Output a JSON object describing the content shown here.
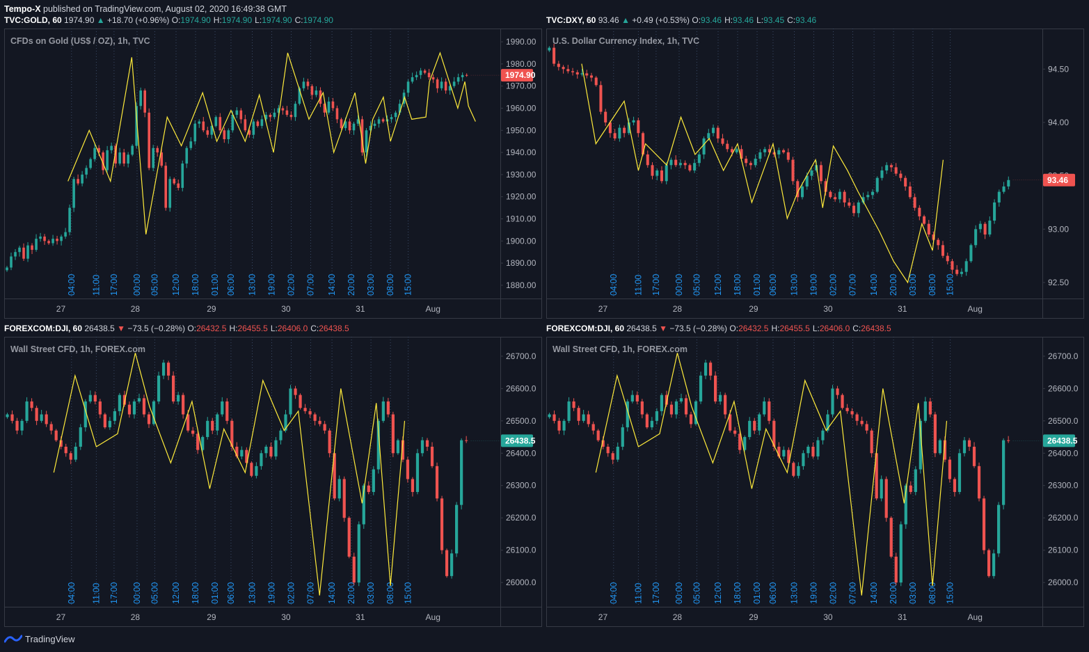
{
  "header": {
    "author": "Tempo-X",
    "text": "published on TradingView.com, August 02, 2020 16:49:38 GMT"
  },
  "footer": {
    "brand": "TradingView",
    "logo_icon": "tradingview-logo-icon"
  },
  "colors": {
    "background": "#131722",
    "border": "#363a45",
    "up": "#26a69a",
    "down": "#ef5350",
    "zigzag": "#ffeb3b",
    "time_label": "#2196f3",
    "grid_vline": "#3a4a66",
    "axis_text": "#b2b5be"
  },
  "panes": [
    {
      "header": {
        "symbol": "TVC:GOLD, 60",
        "last": "1974.90",
        "change": "+18.70 (+0.96%)",
        "direction": "up",
        "o": "1974.90",
        "h": "1974.90",
        "l": "1974.90",
        "c": "1974.90"
      },
      "title": "CFDs on Gold (US$ / OZ), 1h, TVC",
      "price_axis": {
        "ticks": [
          "1990.00",
          "1980.00",
          "1970.00",
          "1960.00",
          "1950.00",
          "1940.00",
          "1930.00",
          "1920.00",
          "1910.00",
          "1900.00",
          "1890.00",
          "1880.00"
        ],
        "last_label": "1974.90",
        "last_color": "#ef5350"
      },
      "time_labels": [
        "04:00",
        "11:00",
        "17:00",
        "00:00",
        "05:00",
        "12:00",
        "18:00",
        "01:00",
        "06:00",
        "13:00",
        "19:00",
        "02:00",
        "07:00",
        "14:00",
        "20:00",
        "03:00",
        "08:00",
        "15:00"
      ],
      "date_labels": [
        "27",
        "28",
        "29",
        "30",
        "31",
        "Aug"
      ],
      "chart_data": {
        "type": "candlestick",
        "ylim": [
          1874,
          1996
        ],
        "x_range": [
          0,
          140
        ],
        "time_label_x": [
          19,
          26,
          31,
          37.5,
          42.5,
          48.5,
          54,
          59.5,
          64,
          70,
          75.5,
          81,
          86.5,
          92.5,
          98,
          103.5,
          109,
          114
        ],
        "date_label_x": [
          16,
          37,
          58.5,
          79.5,
          100.5,
          121
        ],
        "zigzag": [
          [
            18,
            1927
          ],
          [
            24,
            1950
          ],
          [
            30,
            1927
          ],
          [
            36,
            1983
          ],
          [
            40,
            1903
          ],
          [
            46,
            1956
          ],
          [
            50,
            1943
          ],
          [
            56,
            1967
          ],
          [
            60,
            1945
          ],
          [
            64,
            1959
          ],
          [
            68,
            1945
          ],
          [
            72,
            1966
          ],
          [
            76,
            1940
          ],
          [
            80,
            1985
          ],
          [
            86,
            1955
          ],
          [
            90,
            1967
          ],
          [
            93,
            1940
          ],
          [
            99,
            1967
          ],
          [
            102,
            1935
          ],
          [
            104,
            1955
          ],
          [
            107,
            1965
          ],
          [
            109,
            1945
          ],
          [
            113,
            1965
          ],
          [
            115,
            1955
          ],
          [
            119,
            1956
          ],
          [
            120,
            1972
          ],
          [
            123,
            1985
          ],
          [
            126,
            1970
          ],
          [
            128,
            1960
          ],
          [
            130,
            1972
          ],
          [
            131,
            1961
          ],
          [
            133,
            1954
          ]
        ],
        "closes": [
          1888,
          1893,
          1895,
          1897,
          1892,
          1898,
          1896,
          1901,
          1902,
          1900,
          1899,
          1901,
          1900,
          1902,
          1904,
          1915,
          1928,
          1926,
          1930,
          1933,
          1937,
          1942,
          1940,
          1932,
          1941,
          1943,
          1935,
          1940,
          1935,
          1939,
          1943,
          1961,
          1968,
          1958,
          1933,
          1942,
          1940,
          1934,
          1915,
          1928,
          1926,
          1924,
          1935,
          1942,
          1945,
          1953,
          1954,
          1950,
          1948,
          1952,
          1956,
          1950,
          1946,
          1950,
          1957,
          1959,
          1955,
          1950,
          1948,
          1954,
          1952,
          1955,
          1957,
          1956,
          1958,
          1960,
          1959,
          1957,
          1956,
          1962,
          1969,
          1972,
          1970,
          1966,
          1968,
          1962,
          1958,
          1963,
          1960,
          1955,
          1951,
          1954,
          1950,
          1953,
          1955,
          1940,
          1950,
          1952,
          1953,
          1955,
          1954,
          1955,
          1956,
          1958,
          1962,
          1967,
          1972,
          1974,
          1975,
          1977,
          1976,
          1974,
          1973,
          1969,
          1972,
          1968,
          1970,
          1972,
          1974,
          1975,
          1974.9
        ]
      }
    },
    {
      "header": {
        "symbol": "TVC:DXY, 60",
        "last": "93.46",
        "change": "+0.49 (+0.53%)",
        "direction": "up",
        "o": "93.46",
        "h": "93.46",
        "l": "93.45",
        "c": "93.46"
      },
      "title": "U.S. Dollar Currency Index, 1h, TVC",
      "price_axis": {
        "ticks": [
          "94.50",
          "94.00",
          "93.50",
          "93.00",
          "92.50"
        ],
        "last_label": "93.46",
        "last_color": "#ef5350"
      },
      "time_labels": [
        "04:00",
        "11:00",
        "17:00",
        "00:00",
        "05:00",
        "12:00",
        "18:00",
        "01:00",
        "06:00",
        "13:00",
        "19:00",
        "02:00",
        "07:00",
        "14:00",
        "20:00",
        "03:00",
        "08:00",
        "15:00"
      ],
      "date_labels": [
        "27",
        "28",
        "29",
        "30",
        "31",
        "Aug"
      ],
      "chart_data": {
        "type": "candlestick",
        "ylim": [
          92.35,
          94.88
        ],
        "x_range": [
          0,
          140
        ],
        "time_label_x": [
          19,
          26,
          31,
          37.5,
          42.5,
          48.5,
          54,
          59.5,
          64,
          70,
          75.5,
          81,
          86.5,
          92.5,
          98,
          103.5,
          109,
          114
        ],
        "date_label_x": [
          16,
          37,
          58.5,
          79.5,
          100.5,
          121
        ],
        "zigzag": [
          [
            10,
            94.55
          ],
          [
            14,
            93.8
          ],
          [
            22,
            94.2
          ],
          [
            26,
            93.55
          ],
          [
            28,
            93.8
          ],
          [
            34,
            93.6
          ],
          [
            38,
            94.05
          ],
          [
            42,
            93.7
          ],
          [
            46,
            93.85
          ],
          [
            50,
            93.55
          ],
          [
            54,
            93.8
          ],
          [
            58,
            93.25
          ],
          [
            64,
            93.8
          ],
          [
            68,
            93.1
          ],
          [
            71,
            93.35
          ],
          [
            76,
            93.65
          ],
          [
            78,
            93.2
          ],
          [
            81,
            93.78
          ],
          [
            85,
            93.55
          ],
          [
            88,
            93.35
          ],
          [
            94,
            92.98
          ],
          [
            98,
            92.7
          ],
          [
            102,
            92.5
          ],
          [
            106,
            93.05
          ],
          [
            109,
            92.8
          ],
          [
            112,
            93.65
          ]
        ],
        "closes": [
          94.7,
          94.55,
          94.52,
          94.5,
          94.48,
          94.47,
          94.45,
          94.46,
          94.44,
          94.42,
          94.35,
          94.1,
          94.0,
          93.9,
          93.85,
          93.95,
          93.9,
          94.0,
          94.02,
          93.9,
          93.7,
          93.6,
          93.5,
          93.55,
          93.45,
          93.6,
          93.65,
          93.6,
          93.62,
          93.6,
          93.55,
          93.62,
          93.7,
          93.85,
          93.9,
          93.95,
          93.85,
          93.8,
          93.75,
          93.72,
          93.75,
          93.66,
          93.62,
          93.6,
          93.66,
          93.72,
          93.75,
          93.72,
          93.7,
          93.74,
          93.72,
          93.65,
          93.45,
          93.3,
          93.4,
          93.5,
          93.55,
          93.6,
          93.45,
          93.35,
          93.3,
          93.28,
          93.35,
          93.25,
          93.22,
          93.15,
          93.25,
          93.3,
          93.32,
          93.35,
          93.48,
          93.55,
          93.6,
          93.58,
          93.52,
          93.48,
          93.4,
          93.3,
          93.2,
          93.12,
          93.05,
          92.95,
          92.9,
          92.85,
          92.75,
          92.7,
          92.62,
          92.58,
          92.6,
          92.7,
          92.85,
          93.0,
          93.05,
          92.95,
          93.08,
          93.25,
          93.35,
          93.4,
          93.46
        ]
      }
    },
    {
      "header": {
        "symbol": "FOREXCOM:DJI, 60",
        "last": "26438.5",
        "change": "−73.5 (−0.28%)",
        "direction": "down",
        "o": "26432.5",
        "h": "26455.5",
        "l": "26406.0",
        "c": "26438.5"
      },
      "title": "Wall Street CFD, 1h, FOREX.com",
      "price_axis": {
        "ticks": [
          "26700.0",
          "26600.0",
          "26500.0",
          "26400.0",
          "26300.0",
          "26200.0",
          "26100.0",
          "26000.0"
        ],
        "last_label": "26438.5",
        "last_color": "#26a69a"
      },
      "time_labels": [
        "04:00",
        "11:00",
        "17:00",
        "00:00",
        "05:00",
        "12:00",
        "18:00",
        "01:00",
        "06:00",
        "13:00",
        "19:00",
        "02:00",
        "07:00",
        "14:00",
        "20:00",
        "03:00",
        "08:00",
        "15:00"
      ],
      "date_labels": [
        "27",
        "28",
        "29",
        "30",
        "31",
        "Aug"
      ],
      "chart_data": {
        "type": "candlestick",
        "ylim": [
          25925,
          26760
        ],
        "x_range": [
          0,
          140
        ],
        "time_label_x": [
          19,
          26,
          31,
          37.5,
          42.5,
          48.5,
          54,
          59.5,
          64,
          70,
          75.5,
          81,
          86.5,
          92.5,
          98,
          103.5,
          109,
          114
        ],
        "date_label_x": [
          16,
          37,
          58.5,
          79.5,
          100.5,
          121
        ],
        "zigzag": [
          [
            14,
            26340
          ],
          [
            20,
            26640
          ],
          [
            26,
            26420
          ],
          [
            32,
            26460
          ],
          [
            37,
            26710
          ],
          [
            41,
            26545
          ],
          [
            47,
            26370
          ],
          [
            53,
            26560
          ],
          [
            58,
            26290
          ],
          [
            62,
            26475
          ],
          [
            68,
            26340
          ],
          [
            73,
            26625
          ],
          [
            79,
            26470
          ],
          [
            83,
            26530
          ],
          [
            89,
            25960
          ],
          [
            95,
            26600
          ],
          [
            101,
            26245
          ],
          [
            105,
            26555
          ],
          [
            109,
            25990
          ],
          [
            113,
            26500
          ]
        ],
        "closes": [
          26520,
          26500,
          26470,
          26500,
          26560,
          26540,
          26500,
          26520,
          26490,
          26470,
          26440,
          26420,
          26400,
          26380,
          26420,
          26480,
          26560,
          26580,
          26560,
          26520,
          26480,
          26500,
          26530,
          26580,
          26550,
          26520,
          26560,
          26570,
          26520,
          26490,
          26560,
          26640,
          26680,
          26640,
          26560,
          26580,
          26520,
          26470,
          26460,
          26410,
          26450,
          26500,
          26470,
          26520,
          26560,
          26500,
          26420,
          26390,
          26410,
          26370,
          26330,
          26360,
          26400,
          26420,
          26390,
          26440,
          26470,
          26520,
          26600,
          26580,
          26540,
          26530,
          26520,
          26500,
          26490,
          26470,
          26400,
          26260,
          26320,
          26200,
          26080,
          26000,
          26180,
          26300,
          26280,
          26350,
          26500,
          26560,
          26520,
          26400,
          26440,
          26380,
          26320,
          26280,
          26400,
          26440,
          26420,
          26360,
          26260,
          26100,
          26020,
          26090,
          26240,
          26440,
          26438.5
        ]
      }
    },
    {
      "header": {
        "symbol": "FOREXCOM:DJI, 60",
        "last": "26438.5",
        "change": "−73.5 (−0.28%)",
        "direction": "down",
        "o": "26432.5",
        "h": "26455.5",
        "l": "26406.0",
        "c": "26438.5"
      },
      "title": "Wall Street CFD, 1h, FOREX.com",
      "price_axis": {
        "ticks": [
          "26700.0",
          "26600.0",
          "26500.0",
          "26400.0",
          "26300.0",
          "26200.0",
          "26100.0",
          "26000.0"
        ],
        "last_label": "26438.5",
        "last_color": "#26a69a"
      },
      "time_labels": [
        "04:00",
        "11:00",
        "17:00",
        "00:00",
        "05:00",
        "12:00",
        "18:00",
        "01:00",
        "06:00",
        "13:00",
        "19:00",
        "02:00",
        "07:00",
        "14:00",
        "20:00",
        "03:00",
        "08:00",
        "15:00"
      ],
      "date_labels": [
        "27",
        "28",
        "29",
        "30",
        "31",
        "Aug"
      ],
      "chart_data": {
        "type": "candlestick",
        "ylim": [
          25925,
          26760
        ],
        "x_range": [
          0,
          140
        ],
        "time_label_x": [
          19,
          26,
          31,
          37.5,
          42.5,
          48.5,
          54,
          59.5,
          64,
          70,
          75.5,
          81,
          86.5,
          92.5,
          98,
          103.5,
          109,
          114
        ],
        "date_label_x": [
          16,
          37,
          58.5,
          79.5,
          100.5,
          121
        ],
        "zigzag": [
          [
            14,
            26340
          ],
          [
            20,
            26640
          ],
          [
            26,
            26420
          ],
          [
            32,
            26460
          ],
          [
            37,
            26710
          ],
          [
            41,
            26545
          ],
          [
            47,
            26370
          ],
          [
            53,
            26560
          ],
          [
            58,
            26290
          ],
          [
            62,
            26475
          ],
          [
            68,
            26340
          ],
          [
            73,
            26625
          ],
          [
            79,
            26470
          ],
          [
            83,
            26530
          ],
          [
            89,
            25960
          ],
          [
            95,
            26600
          ],
          [
            101,
            26245
          ],
          [
            105,
            26555
          ],
          [
            109,
            25990
          ],
          [
            113,
            26500
          ]
        ],
        "closes": [
          26520,
          26500,
          26470,
          26500,
          26560,
          26540,
          26500,
          26520,
          26490,
          26470,
          26440,
          26420,
          26400,
          26380,
          26420,
          26480,
          26560,
          26580,
          26560,
          26520,
          26480,
          26500,
          26530,
          26580,
          26550,
          26520,
          26560,
          26570,
          26520,
          26490,
          26560,
          26640,
          26680,
          26640,
          26560,
          26580,
          26520,
          26470,
          26460,
          26410,
          26450,
          26500,
          26470,
          26520,
          26560,
          26500,
          26420,
          26390,
          26410,
          26370,
          26330,
          26360,
          26400,
          26420,
          26390,
          26440,
          26470,
          26520,
          26600,
          26580,
          26540,
          26530,
          26520,
          26500,
          26490,
          26470,
          26400,
          26260,
          26320,
          26200,
          26080,
          26000,
          26180,
          26300,
          26280,
          26350,
          26500,
          26560,
          26520,
          26400,
          26440,
          26380,
          26320,
          26280,
          26400,
          26440,
          26420,
          26360,
          26260,
          26100,
          26020,
          26090,
          26240,
          26440,
          26438.5
        ]
      }
    }
  ]
}
